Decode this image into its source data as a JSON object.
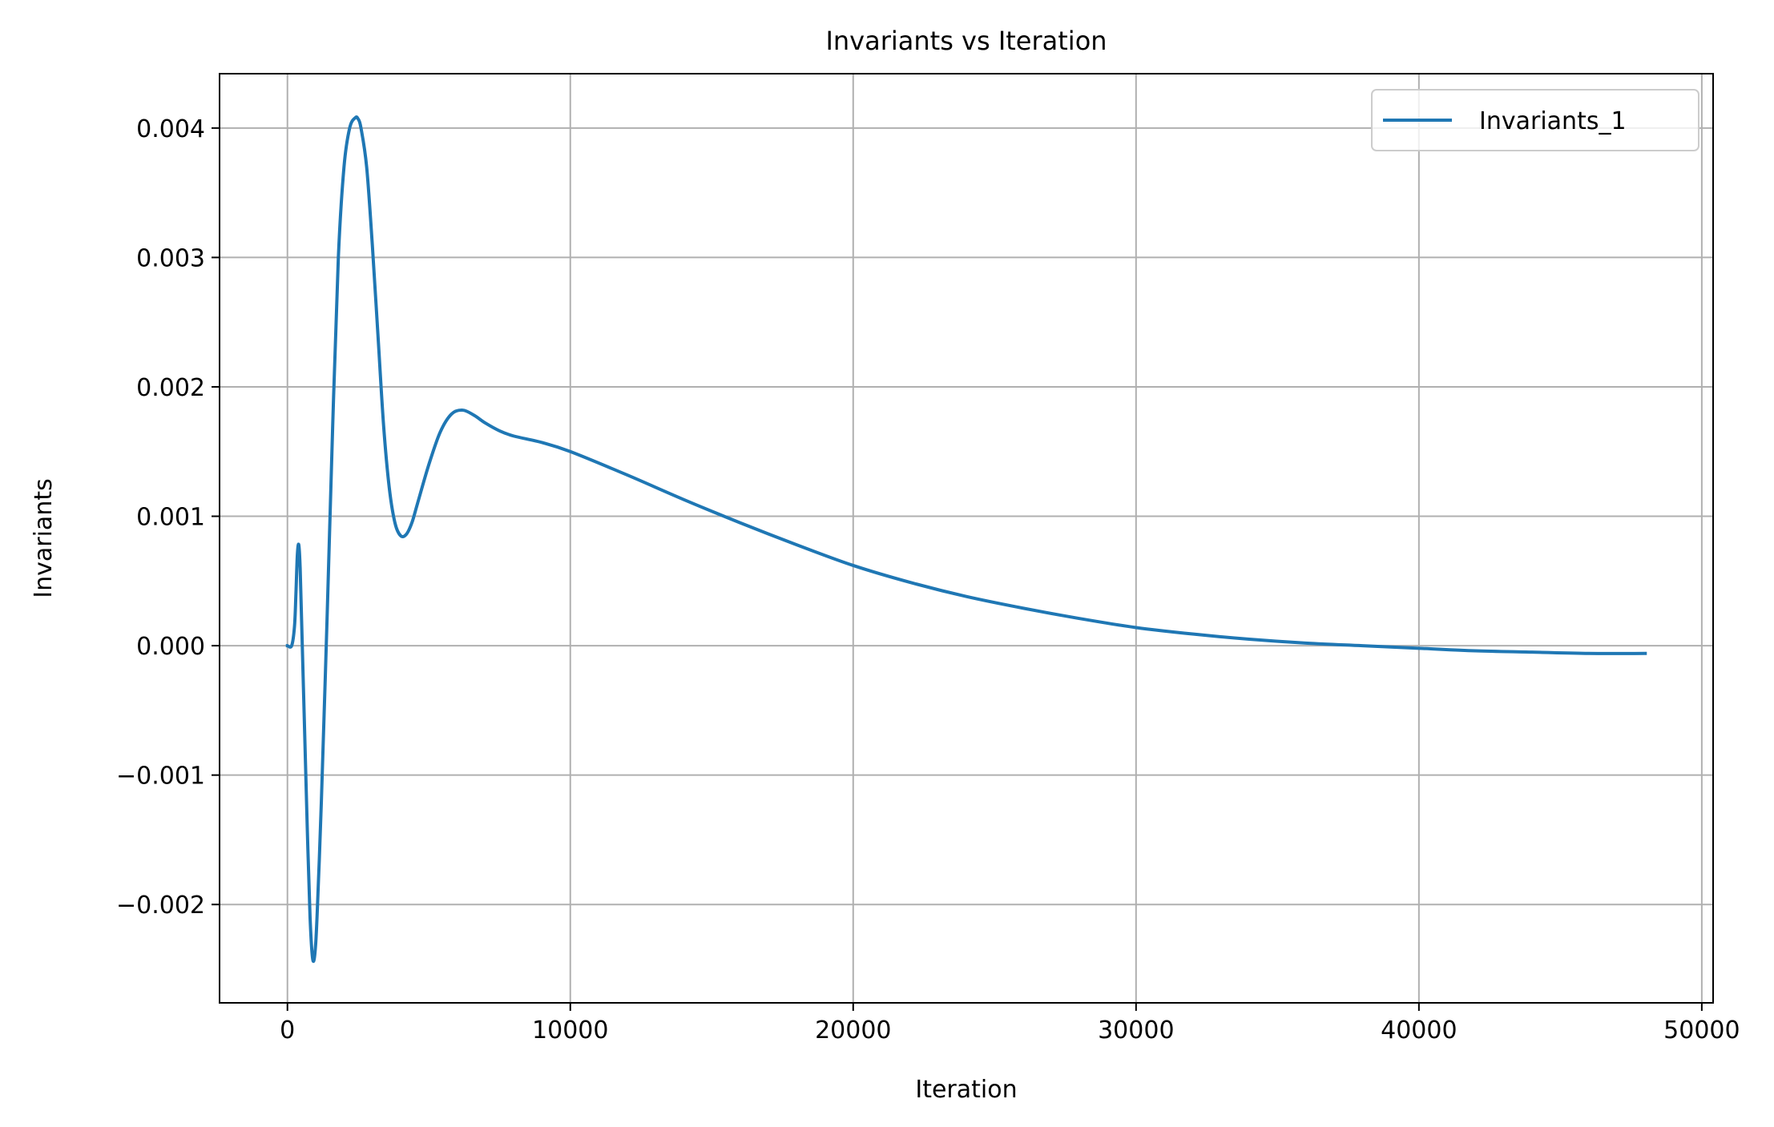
{
  "chart_data": {
    "type": "line",
    "title": "Invariants vs Iteration",
    "xlabel": "Iteration",
    "ylabel": "Invariants",
    "xlim": [
      -2400,
      50400
    ],
    "ylim": [
      -0.00276,
      0.00442
    ],
    "xticks": [
      0,
      10000,
      20000,
      30000,
      40000,
      50000
    ],
    "xtick_labels": [
      "0",
      "10000",
      "20000",
      "30000",
      "40000",
      "50000"
    ],
    "yticks": [
      -0.002,
      -0.001,
      0.0,
      0.001,
      0.002,
      0.003,
      0.004
    ],
    "ytick_labels": [
      "−0.002",
      "−0.001",
      "0.000",
      "0.001",
      "0.002",
      "0.003",
      "0.004"
    ],
    "grid": true,
    "legend": "top-right",
    "series": [
      {
        "name": "Invariants_1",
        "color": "#1f77b4",
        "x": [
          0,
          150,
          250,
          300,
          350,
          400,
          450,
          500,
          600,
          700,
          800,
          900,
          1000,
          1100,
          1200,
          1400,
          1600,
          1800,
          2000,
          2200,
          2400,
          2500,
          2600,
          2800,
          3000,
          3200,
          3400,
          3600,
          3800,
          4000,
          4200,
          4400,
          4600,
          5000,
          5400,
          5800,
          6200,
          6600,
          7000,
          7500,
          8000,
          9000,
          10000,
          12000,
          14000,
          16000,
          18000,
          20000,
          22000,
          24000,
          26000,
          28000,
          30000,
          32000,
          34000,
          36000,
          38000,
          40000,
          42000,
          44000,
          46000,
          48000
        ],
        "values": [
          0.0,
          0.0,
          0.00015,
          0.0004,
          0.0007,
          0.00078,
          0.0006,
          0.0002,
          -0.0006,
          -0.0014,
          -0.0021,
          -0.00243,
          -0.0023,
          -0.0018,
          -0.0012,
          0.0002,
          0.0017,
          0.003,
          0.0037,
          0.004,
          0.00408,
          0.00407,
          0.004,
          0.0037,
          0.0031,
          0.0024,
          0.0017,
          0.00122,
          0.00095,
          0.00085,
          0.00086,
          0.00095,
          0.0011,
          0.0014,
          0.00165,
          0.00179,
          0.00182,
          0.00178,
          0.00172,
          0.00166,
          0.00162,
          0.00157,
          0.0015,
          0.00132,
          0.00113,
          0.00095,
          0.00078,
          0.00062,
          0.00049,
          0.00038,
          0.00029,
          0.00021,
          0.00014,
          9e-05,
          5e-05,
          2e-05,
          0.0,
          -2e-05,
          -4e-05,
          -5e-05,
          -6e-05,
          -6e-05
        ]
      }
    ]
  }
}
